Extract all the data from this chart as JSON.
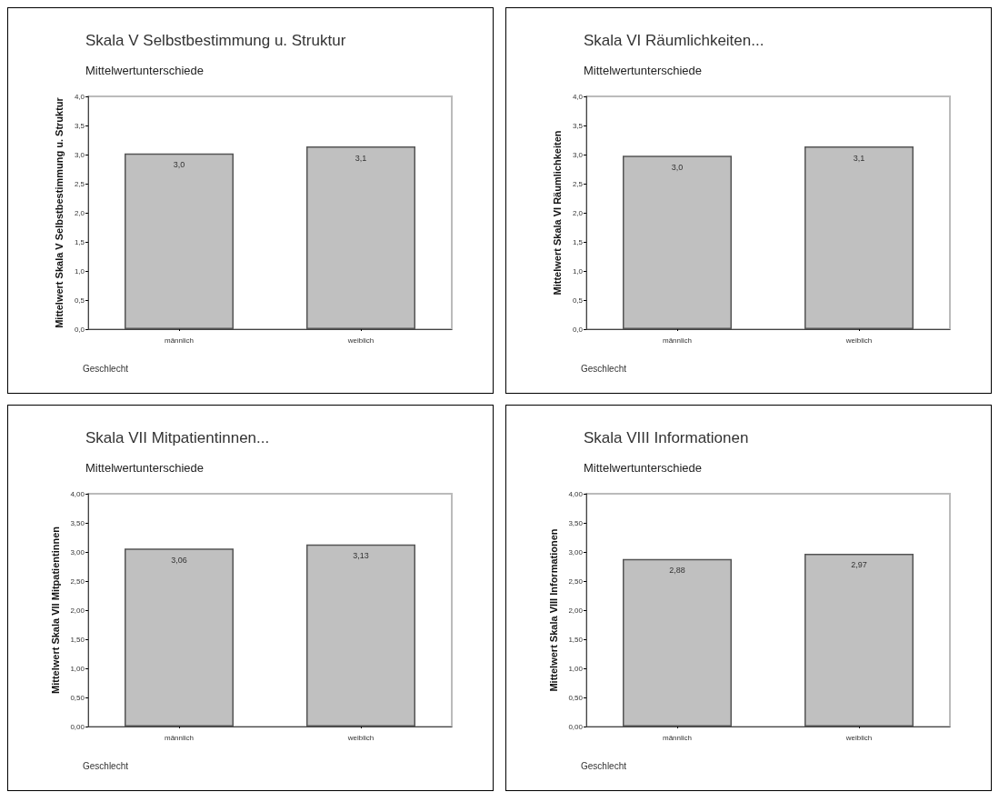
{
  "chart_data": [
    {
      "type": "bar",
      "title": "Skala V Selbstbestimmung u. Struktur",
      "subtitle": "Mittelwertunterschiede",
      "xlabel": "Geschlecht",
      "ylabel": "Mittelwert Skala V Selbstbestimmung u. Struktur",
      "categories": [
        "männlich",
        "weiblich"
      ],
      "values": [
        3.02,
        3.14
      ],
      "value_labels": [
        "3,0",
        "3,1"
      ],
      "color": "#c0c0c0",
      "ylim": [
        0,
        4
      ],
      "yticks": [
        {
          "value": 0,
          "label": "0,0"
        },
        {
          "value": 0.5,
          "label": "0,5"
        },
        {
          "value": 1,
          "label": "1,0"
        },
        {
          "value": 1.5,
          "label": "1,5"
        },
        {
          "value": 2,
          "label": "2,0"
        },
        {
          "value": 2.5,
          "label": "2,5"
        },
        {
          "value": 3,
          "label": "3,0"
        },
        {
          "value": 3.5,
          "label": "3,5"
        },
        {
          "value": 4,
          "label": "4,0"
        }
      ],
      "grid": false
    },
    {
      "type": "bar",
      "title": "Skala VI Räumlichkeiten...",
      "subtitle": "Mittelwertunterschiede",
      "xlabel": "Geschlecht",
      "ylabel": "Mittelwert Skala VI Räumlichkeiten",
      "categories": [
        "männlich",
        "weiblich"
      ],
      "values": [
        2.98,
        3.14
      ],
      "value_labels": [
        "3,0",
        "3,1"
      ],
      "color": "#c0c0c0",
      "ylim": [
        0,
        4
      ],
      "yticks": [
        {
          "value": 0,
          "label": "0,0"
        },
        {
          "value": 0.5,
          "label": "0,5"
        },
        {
          "value": 1,
          "label": "1,0"
        },
        {
          "value": 1.5,
          "label": "1,5"
        },
        {
          "value": 2,
          "label": "2,0"
        },
        {
          "value": 2.5,
          "label": "2,5"
        },
        {
          "value": 3,
          "label": "3,0"
        },
        {
          "value": 3.5,
          "label": "3,5"
        },
        {
          "value": 4,
          "label": "4,0"
        }
      ],
      "grid": false
    },
    {
      "type": "bar",
      "title": "Skala VII Mitpatientinnen...",
      "subtitle": "Mittelwertunterschiede",
      "xlabel": "Geschlecht",
      "ylabel": "Mittelwert Skala VII Mitpatientinnen",
      "categories": [
        "männlich",
        "weiblich"
      ],
      "values": [
        3.06,
        3.13
      ],
      "value_labels": [
        "3,06",
        "3,13"
      ],
      "color": "#c0c0c0",
      "ylim": [
        0,
        4
      ],
      "yticks": [
        {
          "value": 0,
          "label": "0,00"
        },
        {
          "value": 0.5,
          "label": "0,50"
        },
        {
          "value": 1,
          "label": "1,00"
        },
        {
          "value": 1.5,
          "label": "1,50"
        },
        {
          "value": 2,
          "label": "2,00"
        },
        {
          "value": 2.5,
          "label": "2,50"
        },
        {
          "value": 3,
          "label": "3,00"
        },
        {
          "value": 3.5,
          "label": "3,50"
        },
        {
          "value": 4,
          "label": "4,00"
        }
      ],
      "grid": false
    },
    {
      "type": "bar",
      "title": "Skala VIII Informationen",
      "subtitle": "Mittelwertunterschiede",
      "xlabel": "Geschlecht",
      "ylabel": "Mittelwert Skala VIII Informationen",
      "categories": [
        "männlich",
        "weiblich"
      ],
      "values": [
        2.88,
        2.97
      ],
      "value_labels": [
        "2,88",
        "2,97"
      ],
      "color": "#c0c0c0",
      "ylim": [
        0,
        4
      ],
      "yticks": [
        {
          "value": 0,
          "label": "0,00"
        },
        {
          "value": 0.5,
          "label": "0,50"
        },
        {
          "value": 1,
          "label": "1,00"
        },
        {
          "value": 1.5,
          "label": "1,50"
        },
        {
          "value": 2,
          "label": "2,00"
        },
        {
          "value": 2.5,
          "label": "2,50"
        },
        {
          "value": 3,
          "label": "3,00"
        },
        {
          "value": 3.5,
          "label": "3,50"
        },
        {
          "value": 4,
          "label": "4,00"
        }
      ],
      "grid": false
    }
  ]
}
